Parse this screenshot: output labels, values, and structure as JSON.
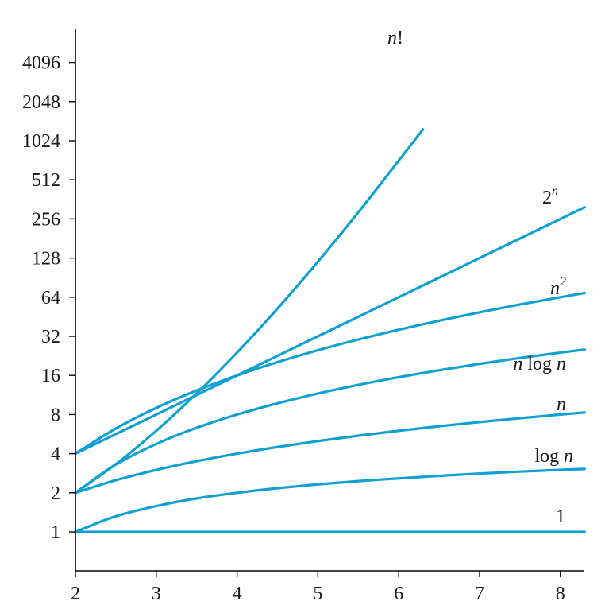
{
  "chart_data": {
    "type": "line",
    "title": "",
    "xlabel": "",
    "ylabel": "",
    "x_scale": "linear",
    "y_scale": "log2",
    "xlim": [
      2,
      8.3
    ],
    "ylim": [
      0.5,
      7000
    ],
    "grid": false,
    "x_ticks": [
      2,
      3,
      4,
      5,
      6,
      7,
      8
    ],
    "x_tick_labels": [
      "2",
      "3",
      "4",
      "5",
      "6",
      "7",
      "8"
    ],
    "y_ticks": [
      1,
      2,
      4,
      8,
      16,
      32,
      64,
      128,
      256,
      512,
      1024,
      2048,
      4096
    ],
    "y_tick_labels": [
      "1",
      "2",
      "4",
      "8",
      "16",
      "32",
      "64",
      "128",
      "256",
      "512",
      "1024",
      "2048",
      "4096"
    ],
    "color": "#0fa0d2",
    "series": [
      {
        "key": "one",
        "label_parts": [
          {
            "t": "1",
            "it": false
          }
        ],
        "label_sup": "",
        "x": [
          2,
          3,
          4,
          5,
          6,
          7,
          8,
          8.3
        ],
        "y": [
          1,
          1,
          1,
          1,
          1,
          1,
          1,
          1
        ]
      },
      {
        "key": "logn",
        "label_parts": [
          {
            "t": "log ",
            "it": false
          },
          {
            "t": "n",
            "it": true
          }
        ],
        "label_sup": "",
        "x": [
          2,
          2.5,
          3,
          3.5,
          4,
          4.5,
          5,
          5.5,
          6,
          6.5,
          7,
          7.5,
          8,
          8.3
        ],
        "y": [
          1,
          1.32,
          1.58,
          1.81,
          2,
          2.17,
          2.32,
          2.46,
          2.58,
          2.7,
          2.81,
          2.91,
          3,
          3.05
        ]
      },
      {
        "key": "n",
        "label_parts": [
          {
            "t": "n",
            "it": true
          }
        ],
        "label_sup": "",
        "x": [
          2,
          2.5,
          3,
          3.5,
          4,
          4.5,
          5,
          5.5,
          6,
          6.5,
          7,
          7.5,
          8,
          8.3
        ],
        "y": [
          2,
          2.5,
          3,
          3.5,
          4,
          4.5,
          5,
          5.5,
          6,
          6.5,
          7,
          7.5,
          8,
          8.3
        ]
      },
      {
        "key": "nlogn",
        "label_parts": [
          {
            "t": "n",
            "it": true
          },
          {
            "t": " log ",
            "it": false
          },
          {
            "t": "n",
            "it": true
          }
        ],
        "label_sup": "",
        "x": [
          2,
          2.5,
          3,
          3.5,
          4,
          4.5,
          5,
          5.5,
          6,
          6.5,
          7,
          7.5,
          8,
          8.3
        ],
        "y": [
          2,
          3.3,
          4.75,
          6.33,
          8,
          9.76,
          11.61,
          13.53,
          15.51,
          17.55,
          19.65,
          21.8,
          24,
          25.3
        ]
      },
      {
        "key": "nsq",
        "label_parts": [
          {
            "t": "n",
            "it": true
          }
        ],
        "label_sup": "2",
        "x": [
          2,
          2.5,
          3,
          3.5,
          4,
          4.5,
          5,
          5.5,
          6,
          6.5,
          7,
          7.5,
          8,
          8.3
        ],
        "y": [
          4,
          6.25,
          9,
          12.25,
          16,
          20.25,
          25,
          30.25,
          36,
          42.25,
          49,
          56.25,
          64,
          68.9
        ]
      },
      {
        "key": "twon",
        "label_parts": [
          {
            "t": "2",
            "it": false
          }
        ],
        "label_sup": "n",
        "x": [
          2,
          3,
          4,
          5,
          6,
          7,
          8,
          8.3
        ],
        "y": [
          4,
          8,
          16,
          32,
          64,
          128,
          256,
          315
        ]
      },
      {
        "key": "fact",
        "label_parts": [
          {
            "t": "n",
            "it": true
          },
          {
            "t": "!",
            "it": false
          }
        ],
        "label_sup": "",
        "x": [
          2,
          2.5,
          3,
          3.5,
          4,
          4.5,
          5,
          5.5,
          6,
          6.3
        ],
        "y": [
          2,
          3.32,
          6,
          11.63,
          24,
          52.34,
          120,
          287.9,
          720,
          1250
        ]
      }
    ]
  }
}
